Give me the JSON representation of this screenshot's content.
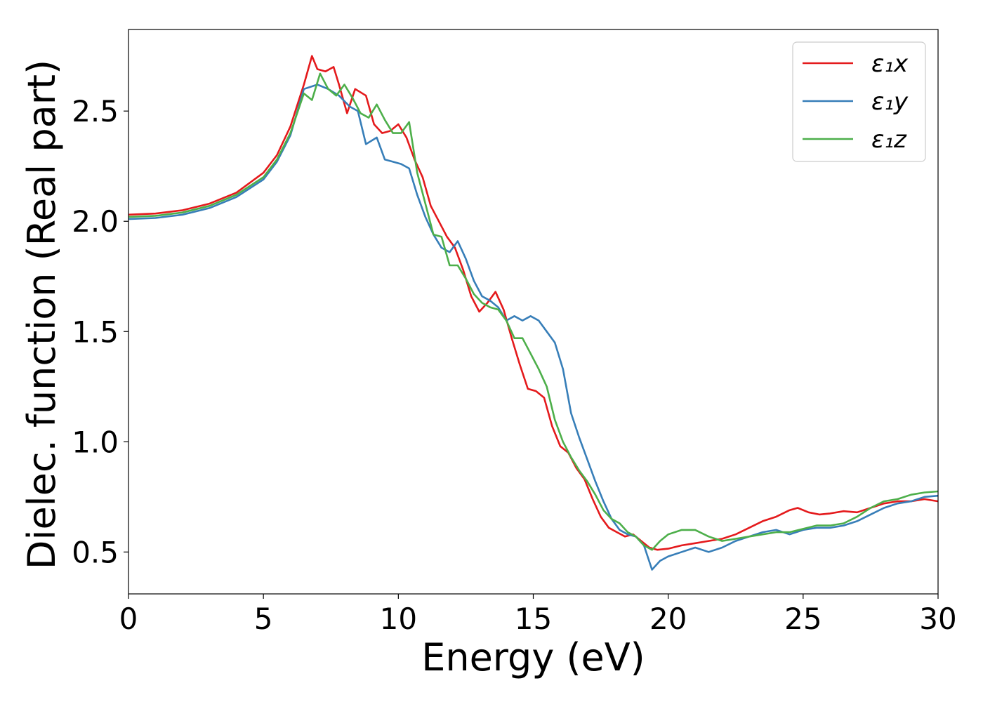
{
  "chart_data": {
    "type": "line",
    "title": "",
    "xlabel": "Energy (eV)",
    "ylabel": "Dielec. function (Real part)",
    "xlim": [
      0,
      30
    ],
    "ylim": [
      0.31,
      2.87
    ],
    "xticks": [
      0,
      5,
      10,
      15,
      20,
      25,
      30
    ],
    "xtick_labels": [
      "0",
      "5",
      "10",
      "15",
      "20",
      "25",
      "30"
    ],
    "yticks": [
      0.5,
      1.0,
      1.5,
      2.0,
      2.5
    ],
    "ytick_labels": [
      "0.5",
      "1.0",
      "1.5",
      "2.0",
      "2.5"
    ],
    "grid": false,
    "legend_position": "top-right",
    "series": [
      {
        "name": "ε₁x",
        "color": "#e41a1c",
        "points": [
          [
            0,
            2.03
          ],
          [
            1,
            2.035
          ],
          [
            2,
            2.05
          ],
          [
            3,
            2.08
          ],
          [
            4,
            2.13
          ],
          [
            5,
            2.22
          ],
          [
            5.5,
            2.3
          ],
          [
            6,
            2.43
          ],
          [
            6.5,
            2.62
          ],
          [
            6.8,
            2.75
          ],
          [
            7,
            2.69
          ],
          [
            7.3,
            2.68
          ],
          [
            7.6,
            2.7
          ],
          [
            7.8,
            2.62
          ],
          [
            8.1,
            2.49
          ],
          [
            8.4,
            2.6
          ],
          [
            8.8,
            2.57
          ],
          [
            9.1,
            2.44
          ],
          [
            9.4,
            2.4
          ],
          [
            9.7,
            2.41
          ],
          [
            10,
            2.44
          ],
          [
            10.3,
            2.38
          ],
          [
            10.6,
            2.28
          ],
          [
            10.9,
            2.2
          ],
          [
            11.2,
            2.07
          ],
          [
            11.5,
            2.0
          ],
          [
            11.8,
            1.93
          ],
          [
            12.1,
            1.88
          ],
          [
            12.4,
            1.78
          ],
          [
            12.7,
            1.66
          ],
          [
            13.0,
            1.59
          ],
          [
            13.3,
            1.63
          ],
          [
            13.6,
            1.68
          ],
          [
            13.9,
            1.6
          ],
          [
            14.2,
            1.47
          ],
          [
            14.5,
            1.35
          ],
          [
            14.8,
            1.24
          ],
          [
            15.1,
            1.23
          ],
          [
            15.4,
            1.2
          ],
          [
            15.7,
            1.07
          ],
          [
            16.0,
            0.98
          ],
          [
            16.3,
            0.95
          ],
          [
            16.6,
            0.88
          ],
          [
            16.9,
            0.83
          ],
          [
            17.2,
            0.74
          ],
          [
            17.5,
            0.66
          ],
          [
            17.8,
            0.61
          ],
          [
            18.1,
            0.59
          ],
          [
            18.4,
            0.57
          ],
          [
            18.7,
            0.58
          ],
          [
            19.0,
            0.55
          ],
          [
            19.3,
            0.52
          ],
          [
            19.6,
            0.51
          ],
          [
            20.0,
            0.515
          ],
          [
            20.5,
            0.53
          ],
          [
            21.0,
            0.54
          ],
          [
            21.5,
            0.55
          ],
          [
            22.0,
            0.56
          ],
          [
            22.5,
            0.58
          ],
          [
            23.0,
            0.61
          ],
          [
            23.5,
            0.64
          ],
          [
            24.0,
            0.66
          ],
          [
            24.5,
            0.69
          ],
          [
            24.8,
            0.7
          ],
          [
            25.2,
            0.68
          ],
          [
            25.6,
            0.67
          ],
          [
            26.0,
            0.675
          ],
          [
            26.5,
            0.685
          ],
          [
            27.0,
            0.68
          ],
          [
            27.5,
            0.7
          ],
          [
            28.0,
            0.72
          ],
          [
            28.5,
            0.73
          ],
          [
            29.0,
            0.73
          ],
          [
            29.5,
            0.74
          ],
          [
            30.0,
            0.73
          ]
        ]
      },
      {
        "name": "ε₁y",
        "color": "#377eb8",
        "points": [
          [
            0,
            2.01
          ],
          [
            1,
            2.015
          ],
          [
            2,
            2.03
          ],
          [
            3,
            2.06
          ],
          [
            4,
            2.11
          ],
          [
            5,
            2.19
          ],
          [
            5.5,
            2.27
          ],
          [
            6,
            2.39
          ],
          [
            6.5,
            2.6
          ],
          [
            7,
            2.62
          ],
          [
            7.4,
            2.6
          ],
          [
            7.8,
            2.57
          ],
          [
            8.2,
            2.52
          ],
          [
            8.5,
            2.5
          ],
          [
            8.8,
            2.35
          ],
          [
            9.2,
            2.38
          ],
          [
            9.5,
            2.28
          ],
          [
            9.8,
            2.27
          ],
          [
            10.1,
            2.26
          ],
          [
            10.4,
            2.24
          ],
          [
            10.7,
            2.12
          ],
          [
            11.0,
            2.02
          ],
          [
            11.3,
            1.94
          ],
          [
            11.6,
            1.88
          ],
          [
            11.9,
            1.86
          ],
          [
            12.2,
            1.91
          ],
          [
            12.5,
            1.83
          ],
          [
            12.8,
            1.73
          ],
          [
            13.1,
            1.66
          ],
          [
            13.4,
            1.64
          ],
          [
            13.7,
            1.61
          ],
          [
            14.0,
            1.55
          ],
          [
            14.3,
            1.57
          ],
          [
            14.6,
            1.55
          ],
          [
            14.9,
            1.57
          ],
          [
            15.2,
            1.55
          ],
          [
            15.5,
            1.5
          ],
          [
            15.8,
            1.45
          ],
          [
            16.1,
            1.33
          ],
          [
            16.4,
            1.13
          ],
          [
            16.7,
            1.02
          ],
          [
            17.0,
            0.92
          ],
          [
            17.3,
            0.82
          ],
          [
            17.6,
            0.73
          ],
          [
            17.9,
            0.65
          ],
          [
            18.2,
            0.6
          ],
          [
            18.5,
            0.58
          ],
          [
            18.8,
            0.57
          ],
          [
            19.1,
            0.53
          ],
          [
            19.4,
            0.42
          ],
          [
            19.7,
            0.46
          ],
          [
            20.0,
            0.48
          ],
          [
            20.5,
            0.5
          ],
          [
            21.0,
            0.52
          ],
          [
            21.5,
            0.5
          ],
          [
            22.0,
            0.52
          ],
          [
            22.5,
            0.55
          ],
          [
            23.0,
            0.57
          ],
          [
            23.5,
            0.59
          ],
          [
            24.0,
            0.6
          ],
          [
            24.5,
            0.58
          ],
          [
            25.0,
            0.6
          ],
          [
            25.5,
            0.61
          ],
          [
            26.0,
            0.61
          ],
          [
            26.5,
            0.62
          ],
          [
            27.0,
            0.64
          ],
          [
            27.5,
            0.67
          ],
          [
            28.0,
            0.7
          ],
          [
            28.5,
            0.72
          ],
          [
            29.0,
            0.73
          ],
          [
            29.5,
            0.75
          ],
          [
            30.0,
            0.755
          ]
        ]
      },
      {
        "name": "ε₁z",
        "color": "#4daf4a",
        "points": [
          [
            0,
            2.02
          ],
          [
            1,
            2.025
          ],
          [
            2,
            2.04
          ],
          [
            3,
            2.07
          ],
          [
            4,
            2.12
          ],
          [
            5,
            2.2
          ],
          [
            5.5,
            2.28
          ],
          [
            6,
            2.4
          ],
          [
            6.5,
            2.58
          ],
          [
            6.8,
            2.55
          ],
          [
            7.1,
            2.67
          ],
          [
            7.4,
            2.6
          ],
          [
            7.7,
            2.57
          ],
          [
            8.0,
            2.62
          ],
          [
            8.3,
            2.56
          ],
          [
            8.6,
            2.49
          ],
          [
            8.9,
            2.47
          ],
          [
            9.2,
            2.53
          ],
          [
            9.5,
            2.46
          ],
          [
            9.8,
            2.4
          ],
          [
            10.1,
            2.4
          ],
          [
            10.4,
            2.45
          ],
          [
            10.7,
            2.22
          ],
          [
            11.0,
            2.08
          ],
          [
            11.3,
            1.94
          ],
          [
            11.6,
            1.93
          ],
          [
            11.9,
            1.8
          ],
          [
            12.2,
            1.8
          ],
          [
            12.5,
            1.74
          ],
          [
            12.8,
            1.67
          ],
          [
            13.1,
            1.63
          ],
          [
            13.4,
            1.61
          ],
          [
            13.7,
            1.6
          ],
          [
            14.0,
            1.55
          ],
          [
            14.3,
            1.47
          ],
          [
            14.6,
            1.47
          ],
          [
            14.9,
            1.4
          ],
          [
            15.2,
            1.33
          ],
          [
            15.5,
            1.25
          ],
          [
            15.8,
            1.1
          ],
          [
            16.1,
            1.0
          ],
          [
            16.4,
            0.93
          ],
          [
            16.7,
            0.87
          ],
          [
            17.0,
            0.82
          ],
          [
            17.3,
            0.76
          ],
          [
            17.6,
            0.69
          ],
          [
            17.9,
            0.65
          ],
          [
            18.2,
            0.63
          ],
          [
            18.5,
            0.59
          ],
          [
            18.8,
            0.57
          ],
          [
            19.1,
            0.53
          ],
          [
            19.4,
            0.51
          ],
          [
            19.7,
            0.55
          ],
          [
            20.0,
            0.58
          ],
          [
            20.5,
            0.6
          ],
          [
            21.0,
            0.6
          ],
          [
            21.5,
            0.57
          ],
          [
            22.0,
            0.55
          ],
          [
            22.5,
            0.56
          ],
          [
            23.0,
            0.57
          ],
          [
            23.5,
            0.58
          ],
          [
            24.0,
            0.59
          ],
          [
            24.5,
            0.59
          ],
          [
            25.0,
            0.605
          ],
          [
            25.5,
            0.62
          ],
          [
            26.0,
            0.62
          ],
          [
            26.5,
            0.63
          ],
          [
            27.0,
            0.66
          ],
          [
            27.5,
            0.7
          ],
          [
            28.0,
            0.73
          ],
          [
            28.5,
            0.74
          ],
          [
            29.0,
            0.76
          ],
          [
            29.5,
            0.77
          ],
          [
            30.0,
            0.775
          ]
        ]
      }
    ]
  }
}
